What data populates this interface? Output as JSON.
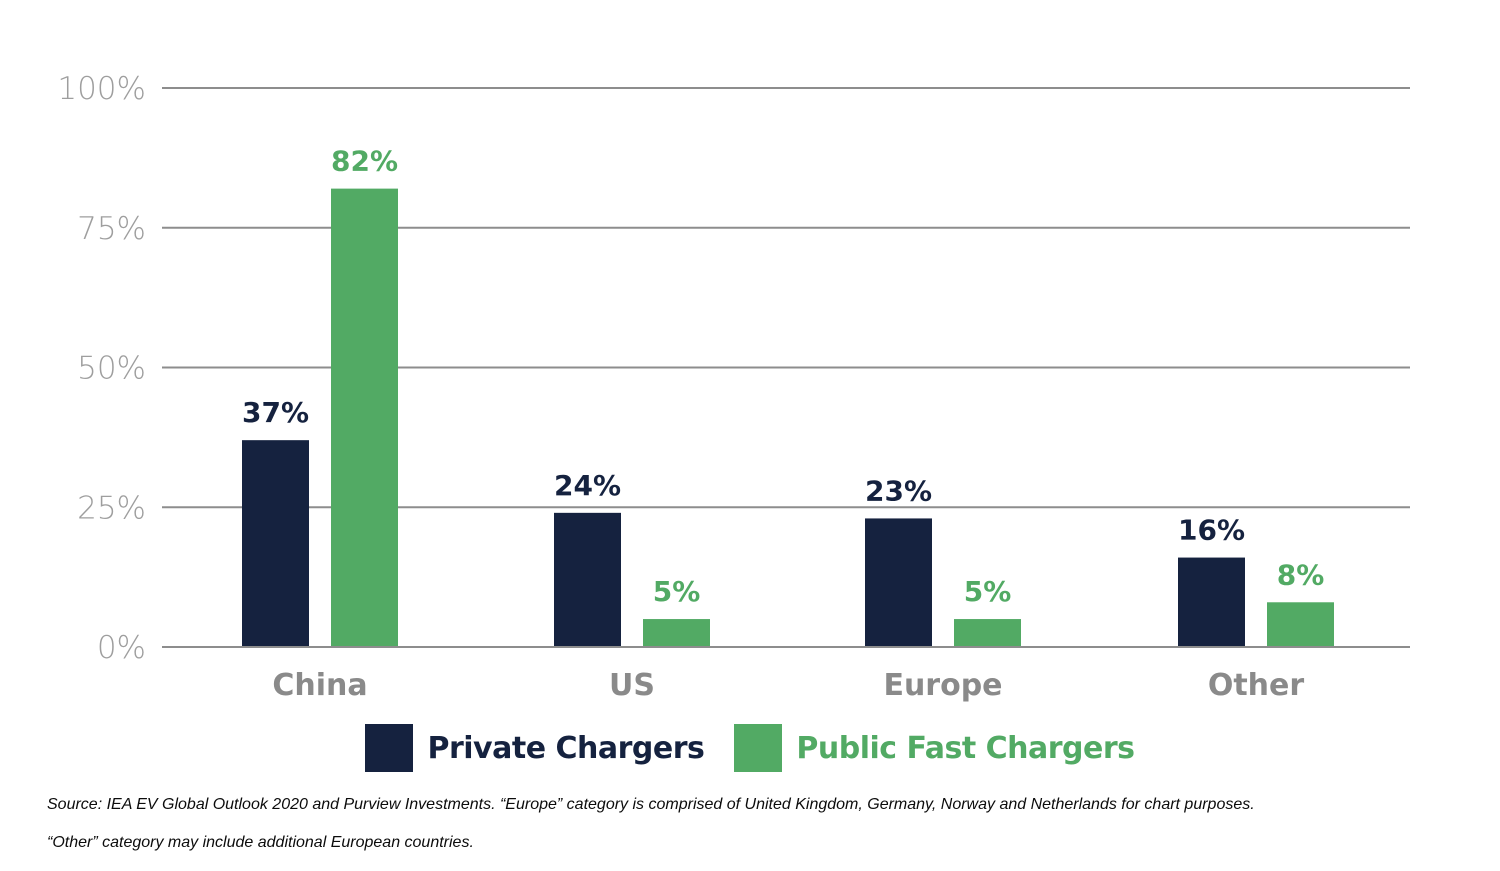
{
  "colors": {
    "private": "#15223f",
    "public": "#52aa64",
    "grid": "#8d8d8d",
    "tick": "#9e9e9e",
    "category": "#8a8a8a"
  },
  "chart_data": {
    "type": "bar",
    "categories": [
      "China",
      "US",
      "Europe",
      "Other"
    ],
    "series": [
      {
        "name": "Private Chargers",
        "values": [
          37,
          24,
          23,
          16
        ],
        "labels": [
          "37%",
          "24%",
          "23%",
          "16%"
        ]
      },
      {
        "name": "Public Fast Chargers",
        "values": [
          82,
          5,
          5,
          8
        ],
        "labels": [
          "82%",
          "5%",
          "5%",
          "8%"
        ]
      }
    ],
    "yticks": [
      0,
      25,
      50,
      75,
      100
    ],
    "ytick_labels": [
      "0%",
      "25%",
      "50%",
      "75%",
      "100%"
    ],
    "ylim": [
      0,
      100
    ],
    "grid": true,
    "legend_position": "bottom-center"
  },
  "legend": {
    "private_label": "Private Chargers",
    "public_label": "Public Fast Chargers"
  },
  "source": {
    "line1": "Source: IEA EV Global Outlook 2020 and Purview Investments. “Europe” category is comprised of United Kingdom, Germany, Norway and Netherlands for chart purposes.",
    "line2": "“Other” category may include additional European countries."
  }
}
